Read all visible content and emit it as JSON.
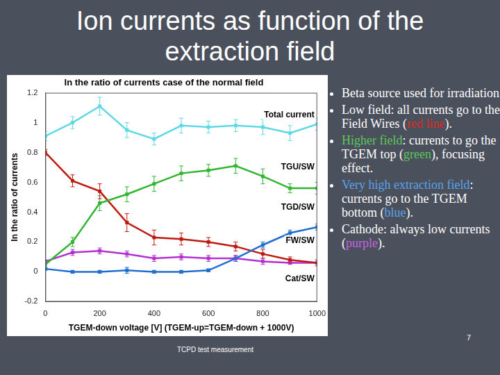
{
  "slide": {
    "title": [
      "Ion currents as function of the",
      "extraction field"
    ],
    "bullets": [
      [
        {
          "text": "Beta source used for irradiation."
        }
      ],
      [
        {
          "text": "Low field: all currents go to the Field Wires ("
        },
        {
          "text": "red line",
          "color": "#e02a20"
        },
        {
          "text": ")."
        }
      ],
      [
        {
          "text": "Higher field",
          "color": "#5cc85c"
        },
        {
          "text": ": currents to go the TGEM top ("
        },
        {
          "text": "green",
          "color": "#5cc85c"
        },
        {
          "text": "), focusing effect."
        }
      ],
      [
        {
          "text": "Very high extraction field",
          "color": "#5aa2ea"
        },
        {
          "text": ": currents go to the TGEM bottom ("
        },
        {
          "text": "blue",
          "color": "#5aa2ea"
        },
        {
          "text": ")."
        }
      ],
      [
        {
          "text": "Cathode: always low currents ("
        },
        {
          "text": "purple",
          "color": "#c464e4"
        },
        {
          "text": ")."
        }
      ]
    ],
    "footer": "TCPD test measurement",
    "page": "7"
  },
  "chart_data": {
    "type": "line",
    "title": "In the ratio of currents case of the normal field",
    "x_label": "TGEM-down voltage [V] (TGEM-up=TGEM-down + 1000V)",
    "y_label": "In the ratio of currents",
    "x": [
      0,
      100,
      200,
      300,
      400,
      500,
      600,
      700,
      800,
      900,
      1000
    ],
    "xlim": [
      0,
      1000
    ],
    "xticks": [
      0,
      200,
      400,
      600,
      800,
      1000
    ],
    "ylim": [
      -0.2,
      1.2
    ],
    "yticks": [
      -0.2,
      0,
      0.2,
      0.4,
      0.6,
      0.8,
      1,
      1.2
    ],
    "grid": false,
    "marker": "square",
    "line_style": "solid",
    "series": [
      {
        "name": "Total current",
        "color": "#5ed8e6",
        "values": [
          0.91,
          1.0,
          1.11,
          0.95,
          0.89,
          0.98,
          0.97,
          0.98,
          0.97,
          0.93,
          0.99
        ],
        "errors": [
          0.03,
          0.04,
          0.06,
          0.05,
          0.04,
          0.05,
          0.04,
          0.04,
          0.05,
          0.05,
          0.04
        ]
      },
      {
        "name": "TGU/SW",
        "color": "#2fb52f",
        "values": [
          0.05,
          0.2,
          0.46,
          0.52,
          0.59,
          0.66,
          0.68,
          0.71,
          0.64,
          0.56,
          0.56
        ],
        "errors": [
          0.02,
          0.03,
          0.05,
          0.05,
          0.05,
          0.05,
          0.04,
          0.05,
          0.05,
          0.03,
          0.04
        ]
      },
      {
        "name": "TGD/SW",
        "color": "#1f6fd0",
        "values": [
          0.02,
          0.0,
          0.0,
          0.01,
          0.0,
          0.0,
          0.01,
          0.09,
          0.18,
          0.26,
          0.3
        ],
        "errors": [
          0.01,
          0.01,
          0.01,
          0.02,
          0.01,
          0.01,
          0.01,
          0.02,
          0.02,
          0.02,
          0.02
        ]
      },
      {
        "name": "FW/SW",
        "color": "#c0180f",
        "values": [
          0.8,
          0.61,
          0.54,
          0.33,
          0.23,
          0.22,
          0.2,
          0.17,
          0.12,
          0.08,
          0.06
        ],
        "errors": [
          0.02,
          0.04,
          0.05,
          0.06,
          0.05,
          0.04,
          0.03,
          0.03,
          0.03,
          0.02,
          0.02
        ]
      },
      {
        "name": "Cat/SW",
        "color": "#b231d0",
        "values": [
          0.07,
          0.13,
          0.14,
          0.12,
          0.09,
          0.1,
          0.09,
          0.09,
          0.07,
          0.06,
          0.06
        ],
        "errors": [
          0.01,
          0.02,
          0.02,
          0.02,
          0.02,
          0.02,
          0.02,
          0.02,
          0.02,
          0.01,
          0.01
        ]
      }
    ]
  }
}
